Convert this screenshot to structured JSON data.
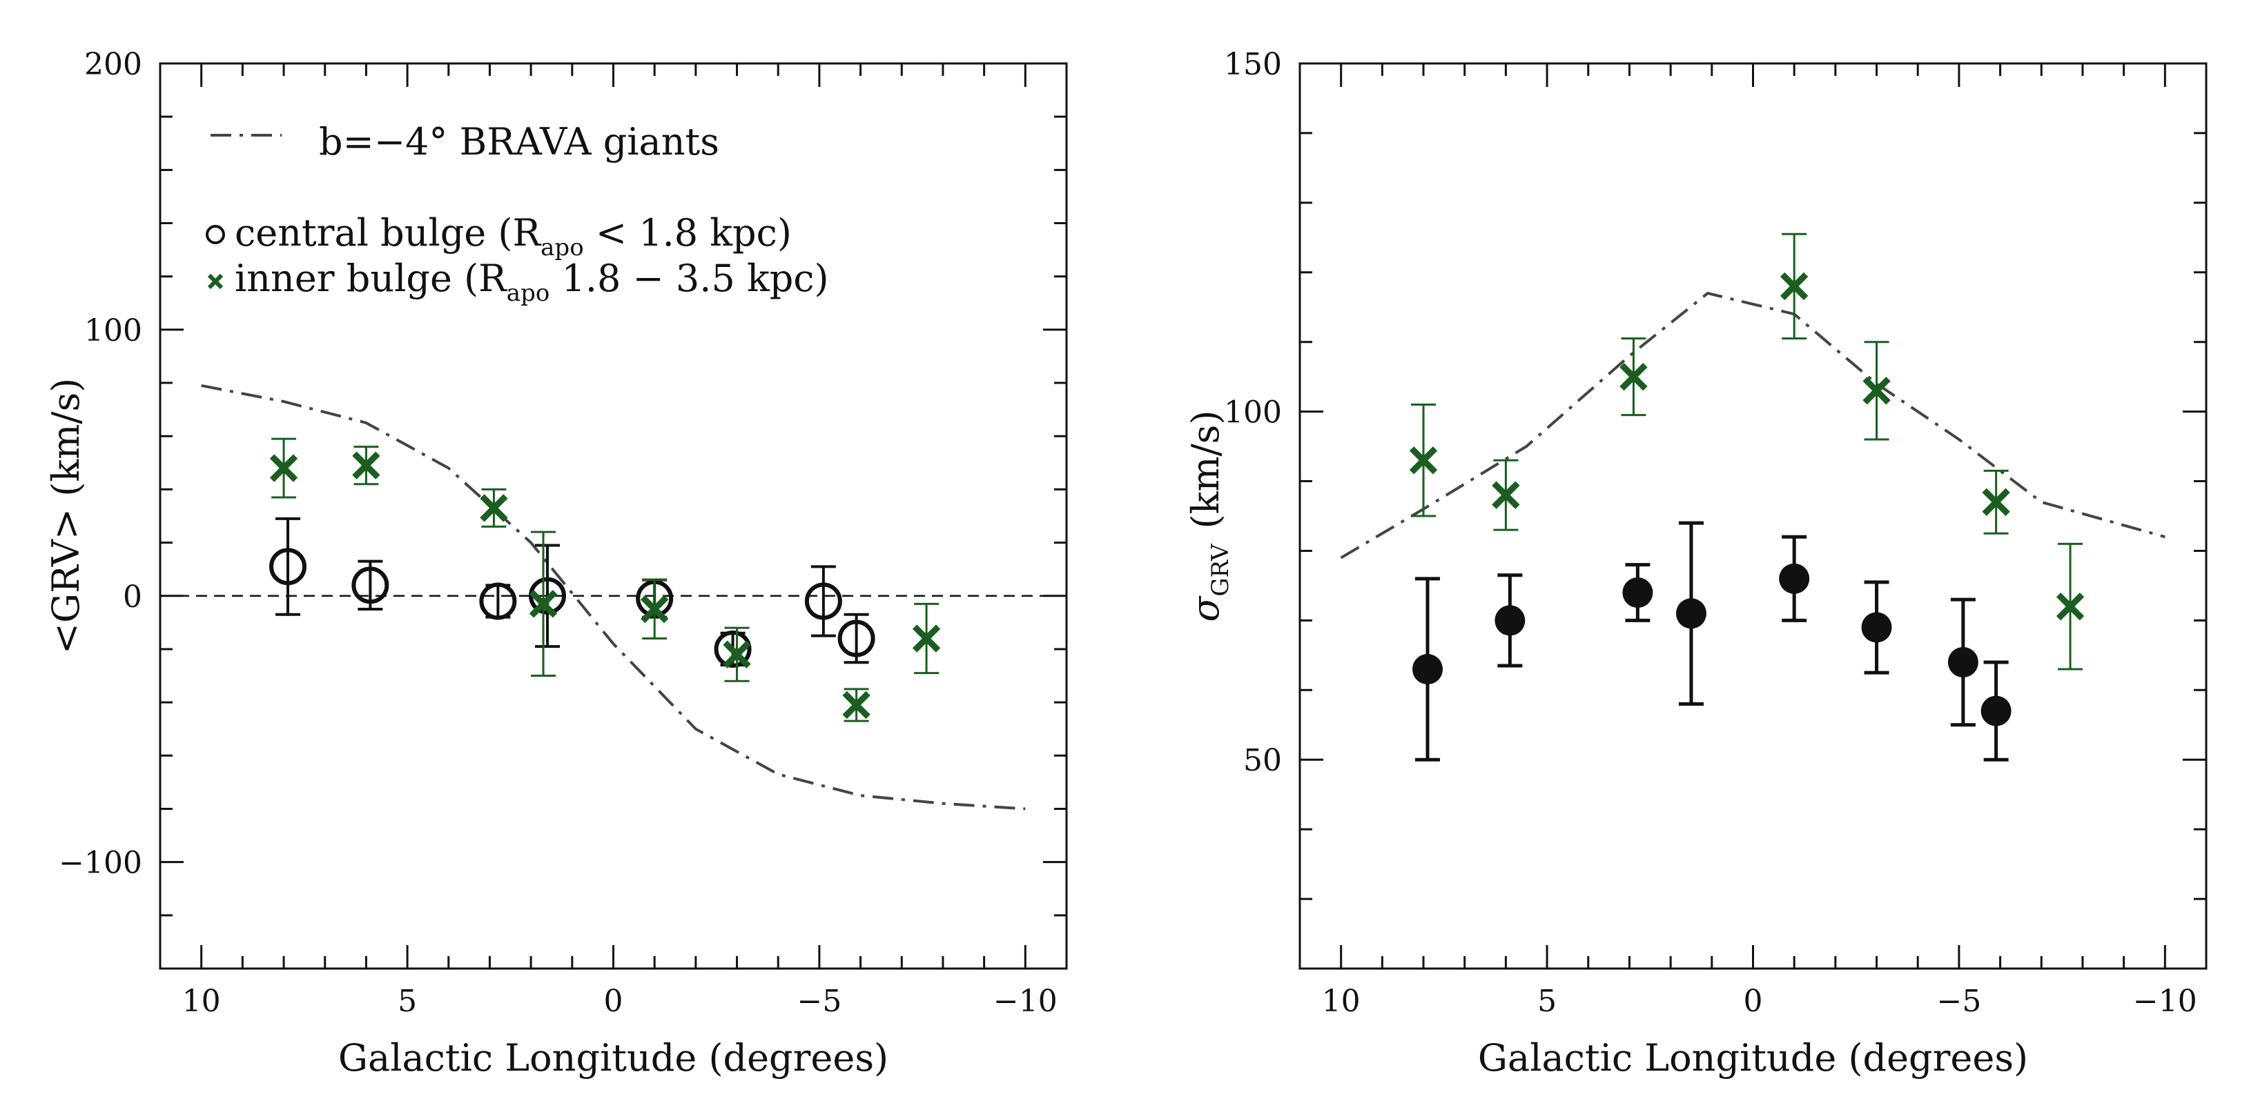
{
  "colors": {
    "ink": "#111111",
    "green": "#1b5e20",
    "model": "#444444"
  },
  "legend": {
    "model_label": "b=−4° BRAVA giants",
    "central_prefix": "central bulge (R",
    "central_sub": "apo",
    "central_suffix": " < 1.8 kpc)",
    "inner_prefix": "inner bulge (R",
    "inner_sub": "apo",
    "inner_suffix": " 1.8 − 3.5 kpc)"
  },
  "chart_data": [
    {
      "type": "scatter",
      "panel": "left",
      "xlabel": "Galactic Longitude (degrees)",
      "ylabel": "<GRV> (km/s)",
      "xlim": [
        11,
        -11
      ],
      "ylim": [
        -140,
        200
      ],
      "x_ticks": [
        10,
        5,
        0,
        -5,
        -10
      ],
      "x_tick_labels": [
        "10",
        "5",
        "0",
        "−5",
        "−10"
      ],
      "y_ticks": [
        -100,
        0,
        100,
        200
      ],
      "y_tick_labels": [
        "−100",
        "0",
        "100",
        "200"
      ],
      "reference_line_y": 0,
      "series": [
        {
          "name": "b=−4° BRAVA giants",
          "style": "dash-dot line",
          "x": [
            10,
            8,
            6,
            4,
            2,
            0,
            -2,
            -4,
            -6,
            -8,
            -10
          ],
          "y": [
            79,
            73,
            65,
            48,
            20,
            -18,
            -50,
            -67,
            -75,
            -78,
            -80
          ]
        },
        {
          "name": "central bulge (R_apo < 1.8 kpc)",
          "style": "open circle",
          "x": [
            7.9,
            5.9,
            2.8,
            1.6,
            -1.0,
            -2.9,
            -5.1,
            -5.9
          ],
          "y": [
            11,
            4,
            -2,
            0,
            -1,
            -20,
            -2,
            -16
          ],
          "err": [
            18,
            9,
            6,
            19,
            7,
            6,
            13,
            9
          ]
        },
        {
          "name": "inner bulge (R_apo 1.8 − 3.5 kpc)",
          "style": "x cross",
          "x": [
            8.0,
            6.0,
            2.9,
            1.7,
            -1.0,
            -3.0,
            -5.9,
            -7.6
          ],
          "y": [
            48,
            49,
            33,
            -3,
            -5,
            -22,
            -41,
            -16
          ],
          "err": [
            11,
            7,
            7,
            27,
            11,
            10,
            6,
            13
          ]
        }
      ]
    },
    {
      "type": "scatter",
      "panel": "right",
      "xlabel": "Galactic Longitude (degrees)",
      "ylabel_symbol": "σ",
      "ylabel_sub": "GRV",
      "ylabel_unit": "(km/s)",
      "xlim": [
        11,
        -11
      ],
      "ylim": [
        20,
        150
      ],
      "x_ticks": [
        10,
        5,
        0,
        -5,
        -10
      ],
      "x_tick_labels": [
        "10",
        "5",
        "0",
        "−5",
        "−10"
      ],
      "y_ticks": [
        50,
        100,
        150
      ],
      "y_tick_labels": [
        "50",
        "100",
        "150"
      ],
      "series": [
        {
          "name": "b=−4° BRAVA giants",
          "style": "dash-dot line",
          "x": [
            10,
            8,
            5.5,
            3,
            1.1,
            -1,
            -3,
            -5,
            -7,
            -10
          ],
          "y": [
            79,
            86,
            95,
            108,
            117,
            114,
            104,
            96,
            87,
            82
          ]
        },
        {
          "name": "central bulge",
          "style": "filled circle",
          "x": [
            7.9,
            5.9,
            2.8,
            1.5,
            -1.0,
            -3.0,
            -5.1,
            -5.9
          ],
          "y": [
            63,
            70,
            74,
            71,
            76,
            69,
            64,
            57
          ],
          "err": [
            13,
            6.5,
            4,
            13,
            6,
            6.5,
            9,
            7
          ]
        },
        {
          "name": "inner bulge",
          "style": "x cross",
          "x": [
            8.0,
            6.0,
            2.9,
            -1.0,
            -3.0,
            -5.9,
            -7.7
          ],
          "y": [
            93,
            88,
            105,
            118,
            103,
            87,
            72
          ],
          "err": [
            8,
            5,
            5.5,
            7.5,
            7,
            4.5,
            9
          ]
        }
      ]
    }
  ]
}
